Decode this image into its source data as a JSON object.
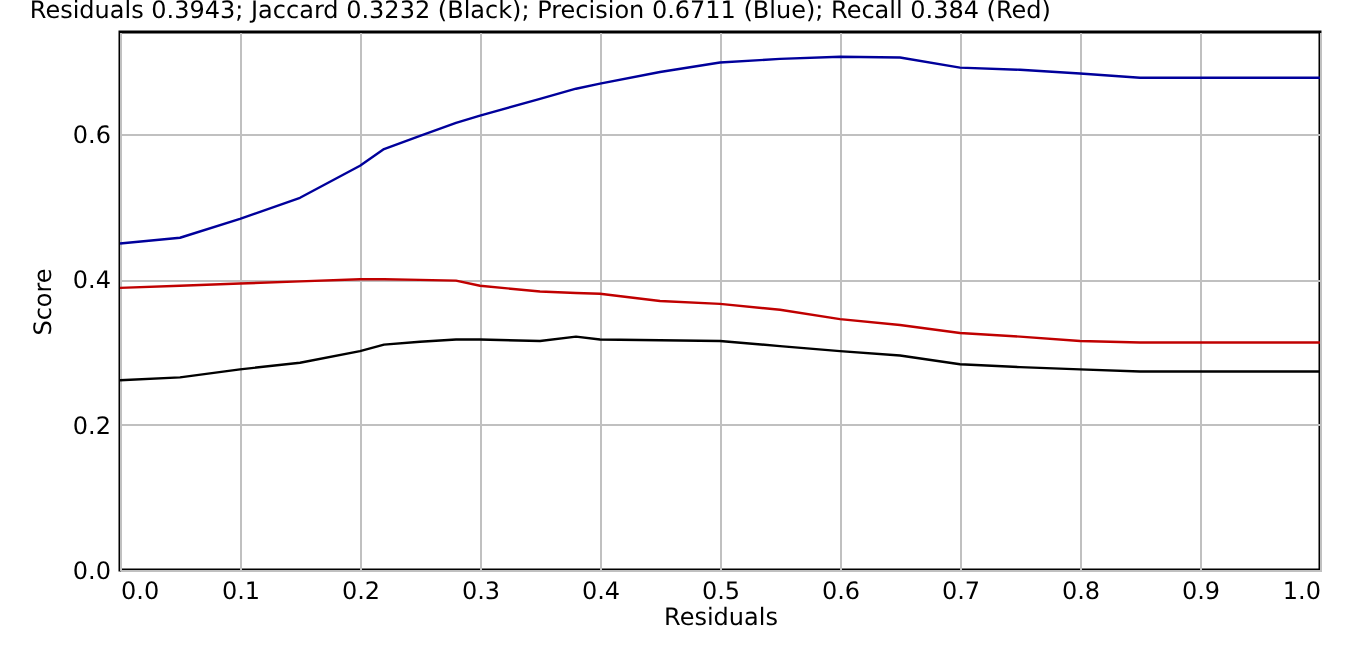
{
  "chart_data": {
    "type": "line",
    "title": "Residuals 0.3943; Jaccard 0.3232 (Black); Precision 0.6711 (Blue); Recall 0.384 (Red)",
    "xlabel": "Residuals",
    "ylabel": "Score",
    "x": [
      0,
      0.05,
      0.1,
      0.15,
      0.2,
      0.22,
      0.25,
      0.28,
      0.3,
      0.35,
      0.38,
      0.4,
      0.45,
      0.5,
      0.55,
      0.6,
      0.65,
      0.7,
      0.75,
      0.8,
      0.85,
      0.9,
      1.0
    ],
    "series": [
      {
        "color": "#00009b",
        "values": [
          0.449,
          0.457,
          0.483,
          0.512,
          0.556,
          0.579,
          0.597,
          0.615,
          0.625,
          0.648,
          0.662,
          0.669,
          0.685,
          0.698,
          0.703,
          0.706,
          0.705,
          0.691,
          0.688,
          0.683,
          0.677,
          0.677,
          0.677
        ]
      },
      {
        "color": "#c00000",
        "values": [
          0.388,
          0.391,
          0.394,
          0.397,
          0.4,
          0.4,
          0.399,
          0.398,
          0.391,
          0.383,
          0.381,
          0.38,
          0.37,
          0.366,
          0.358,
          0.345,
          0.337,
          0.326,
          0.321,
          0.315,
          0.313,
          0.313,
          0.313
        ]
      },
      {
        "color": "#000000",
        "values": [
          0.261,
          0.265,
          0.276,
          0.285,
          0.301,
          0.31,
          0.314,
          0.317,
          0.317,
          0.315,
          0.321,
          0.317,
          0.316,
          0.315,
          0.308,
          0.301,
          0.295,
          0.283,
          0.279,
          0.276,
          0.273,
          0.273,
          0.273
        ]
      }
    ],
    "xlim": [
      0,
      1
    ],
    "xticks": [
      {
        "value": 0,
        "label": "0.0"
      },
      0.1,
      0.2,
      0.3,
      0.4,
      0.5,
      0.6,
      0.7,
      0.8,
      0.9,
      {
        "value": 1,
        "label": "1.0"
      }
    ],
    "ylim": [
      0,
      0.74
    ],
    "yticks": [
      {
        "value": 0,
        "label": "0.0"
      },
      0.2,
      0.4,
      0.6
    ],
    "grid": true,
    "marker": "none",
    "line_style": "solid"
  }
}
